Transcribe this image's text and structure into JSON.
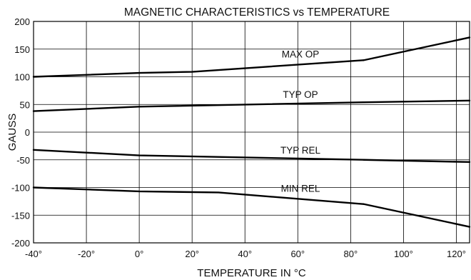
{
  "chart_data": {
    "type": "line",
    "title": "MAGNETIC CHARACTERISTICS vs TEMPERATURE",
    "xlabel": "TEMPERATURE IN °C",
    "ylabel": "GAUSS",
    "xlim": [
      -40,
      125
    ],
    "ylim": [
      -200,
      200
    ],
    "x_ticks": [
      -40,
      -20,
      0,
      20,
      40,
      60,
      80,
      100,
      120
    ],
    "x_tick_labels": [
      "-40°",
      "-20°",
      "0°",
      "20°",
      "40°",
      "60°",
      "80°",
      "100°",
      "120°"
    ],
    "y_ticks": [
      -200,
      -150,
      -100,
      -50,
      0,
      50,
      100,
      150,
      200
    ],
    "y_tick_labels": [
      "-200",
      "-150",
      "-100",
      "-50",
      "0",
      "50",
      "100",
      "150",
      "200"
    ],
    "grid": true,
    "series": [
      {
        "name": "MAX OP",
        "x": [
          -40,
          0,
          20,
          85,
          125
        ],
        "values": [
          100,
          107,
          109,
          130,
          171
        ]
      },
      {
        "name": "TYP OP",
        "x": [
          -40,
          0,
          85,
          125
        ],
        "values": [
          38,
          46,
          54,
          57
        ]
      },
      {
        "name": "TYP REL",
        "x": [
          -40,
          0,
          85,
          125
        ],
        "values": [
          -32,
          -42,
          -50,
          -54
        ]
      },
      {
        "name": "MIN REL",
        "x": [
          -40,
          0,
          30,
          85,
          125
        ],
        "values": [
          -100,
          -107,
          -109,
          -130,
          -171
        ]
      }
    ]
  }
}
